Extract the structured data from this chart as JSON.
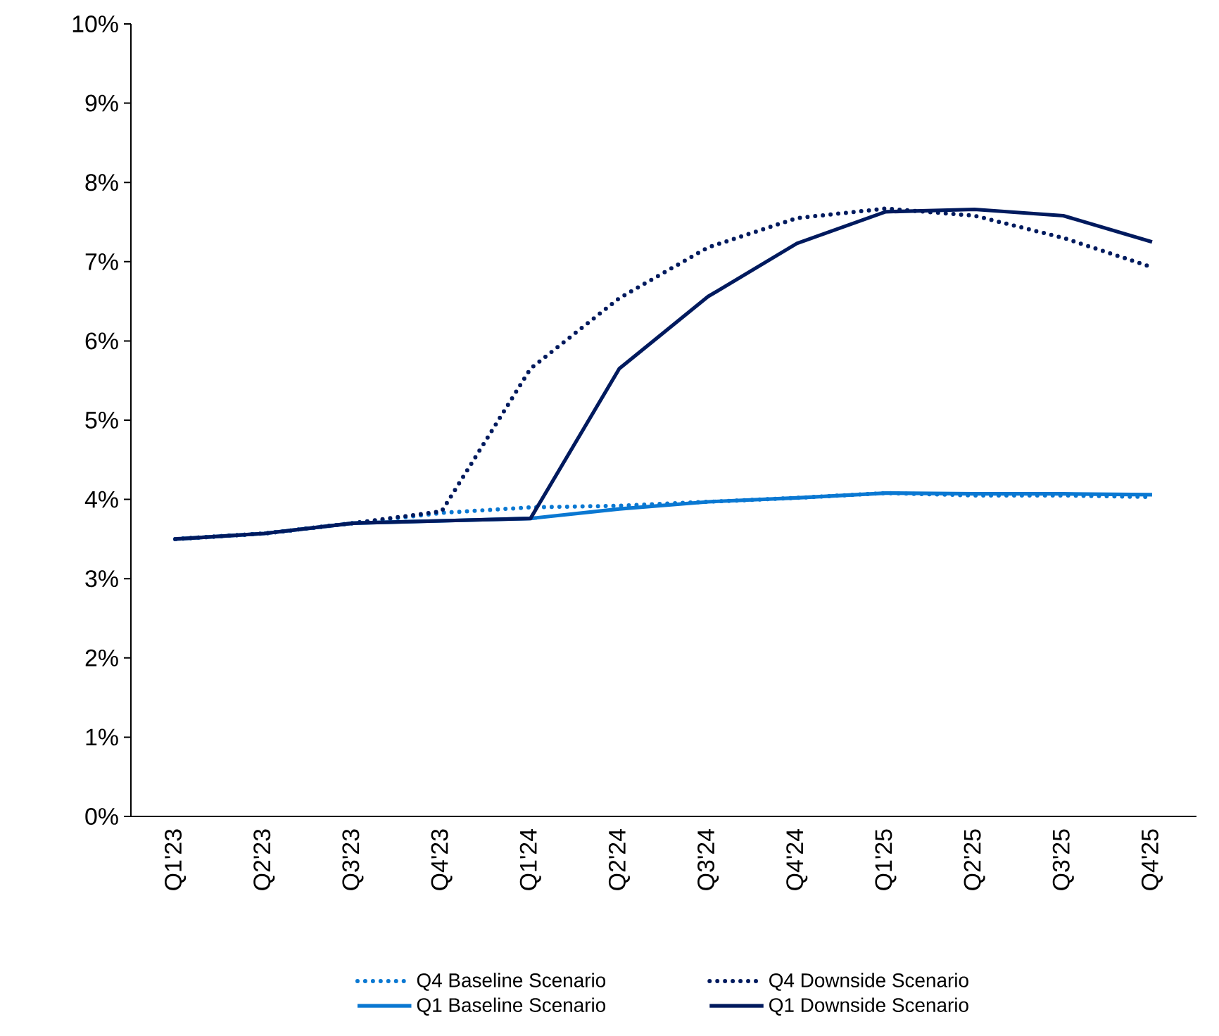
{
  "chart_data": {
    "type": "line",
    "categories": [
      "Q1'23",
      "Q2'23",
      "Q3'23",
      "Q4'23",
      "Q1'24",
      "Q2'24",
      "Q3'24",
      "Q4'24",
      "Q1'25",
      "Q2'25",
      "Q3'25",
      "Q4'25"
    ],
    "series": [
      {
        "name": "Q4 Baseline Scenario",
        "color": "#0a78d2",
        "line_style": "dotted",
        "values": [
          3.5,
          3.57,
          3.7,
          3.83,
          3.9,
          3.92,
          3.97,
          4.02,
          4.08,
          4.05,
          4.05,
          4.03
        ]
      },
      {
        "name": "Q4 Downside Scenario",
        "color": "#001a5e",
        "line_style": "dotted",
        "values": [
          3.5,
          3.57,
          3.7,
          3.85,
          5.65,
          6.54,
          7.18,
          7.55,
          7.67,
          7.58,
          7.3,
          6.93
        ]
      },
      {
        "name": "Q1 Baseline Scenario",
        "color": "#0a78d2",
        "line_style": "solid",
        "values": [
          3.5,
          3.57,
          3.7,
          3.73,
          3.76,
          3.88,
          3.97,
          4.02,
          4.08,
          4.07,
          4.07,
          4.06
        ]
      },
      {
        "name": "Q1 Downside Scenario",
        "color": "#001a5e",
        "line_style": "solid",
        "values": [
          3.5,
          3.57,
          3.7,
          3.73,
          3.76,
          5.65,
          6.56,
          7.23,
          7.63,
          7.66,
          7.58,
          7.25
        ]
      }
    ],
    "ylim": [
      0,
      10
    ],
    "yticks": [
      {
        "value": 0,
        "label": "0%"
      },
      {
        "value": 1,
        "label": "1%"
      },
      {
        "value": 2,
        "label": "2%"
      },
      {
        "value": 3,
        "label": "3%"
      },
      {
        "value": 4,
        "label": "4%"
      },
      {
        "value": 5,
        "label": "5%"
      },
      {
        "value": 6,
        "label": "6%"
      },
      {
        "value": 7,
        "label": "7%"
      },
      {
        "value": 8,
        "label": "8%"
      },
      {
        "value": 9,
        "label": "9%"
      },
      {
        "value": 10,
        "label": "10%"
      }
    ],
    "legend": "bottom"
  }
}
